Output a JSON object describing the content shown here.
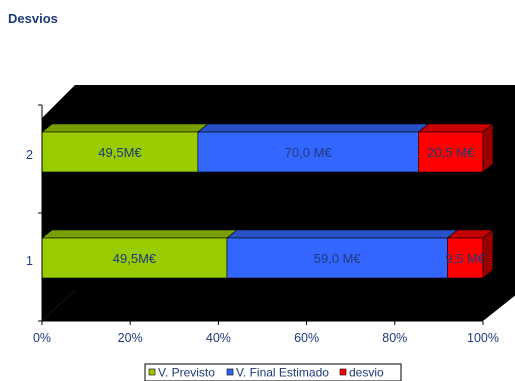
{
  "chart_data": {
    "type": "bar",
    "orientation": "horizontal",
    "stacked": "percent",
    "title": "Desvios",
    "categories": [
      "1",
      "2"
    ],
    "x_ticks": [
      "0%",
      "20%",
      "40%",
      "60%",
      "80%",
      "100%"
    ],
    "xlim": [
      0,
      100
    ],
    "grid": false,
    "legend_position": "bottom",
    "series": [
      {
        "name": "V. Previsto",
        "color": "#99cc00",
        "values": [
          49.5,
          49.5
        ],
        "labels": [
          "49,5M€",
          "49,5M€"
        ]
      },
      {
        "name": "V. Final Estimado",
        "color": "#3366ff",
        "values": [
          59.0,
          70.0
        ],
        "labels": [
          "59,0 M€",
          "70,0 M€"
        ]
      },
      {
        "name": "desvio",
        "color": "#ff0000",
        "values": [
          9.5,
          20.5
        ],
        "labels": [
          "9,5 M€",
          "20,5 M€"
        ]
      }
    ]
  }
}
